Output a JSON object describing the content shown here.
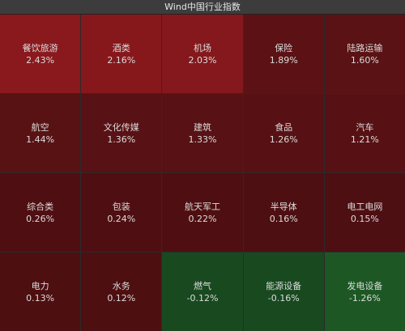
{
  "header": {
    "title": "Wind中国行业指数"
  },
  "tiles": [
    {
      "name": "餐饮旅游",
      "change": "2.43%",
      "color": "#8a191d"
    },
    {
      "name": "酒类",
      "change": "2.16%",
      "color": "#86181c"
    },
    {
      "name": "机场",
      "change": "2.03%",
      "color": "#84181c"
    },
    {
      "name": "保险",
      "change": "1.89%",
      "color": "#5c1215"
    },
    {
      "name": "陆路运输",
      "change": "1.60%",
      "color": "#5a1214"
    },
    {
      "name": "航空",
      "change": "1.44%",
      "color": "#591214"
    },
    {
      "name": "文化传媒",
      "change": "1.36%",
      "color": "#581114"
    },
    {
      "name": "建筑",
      "change": "1.33%",
      "color": "#581114"
    },
    {
      "name": "食品",
      "change": "1.26%",
      "color": "#571114"
    },
    {
      "name": "汽车",
      "change": "1.21%",
      "color": "#571114"
    },
    {
      "name": "综合类",
      "change": "0.26%",
      "color": "#4f0f12"
    },
    {
      "name": "包装",
      "change": "0.24%",
      "color": "#4f0f12"
    },
    {
      "name": "航天军工",
      "change": "0.22%",
      "color": "#4f0f12"
    },
    {
      "name": "半导体",
      "change": "0.16%",
      "color": "#4e0f12"
    },
    {
      "name": "电工电网",
      "change": "0.15%",
      "color": "#4e0f12"
    },
    {
      "name": "电力",
      "change": "0.13%",
      "color": "#4e0f11"
    },
    {
      "name": "水务",
      "change": "0.12%",
      "color": "#4e0f11"
    },
    {
      "name": "燃气",
      "change": "-0.12%",
      "color": "#18491f"
    },
    {
      "name": "能源设备",
      "change": "-0.16%",
      "color": "#18491f"
    },
    {
      "name": "发电设备",
      "change": "-1.26%",
      "color": "#1d5824"
    }
  ]
}
